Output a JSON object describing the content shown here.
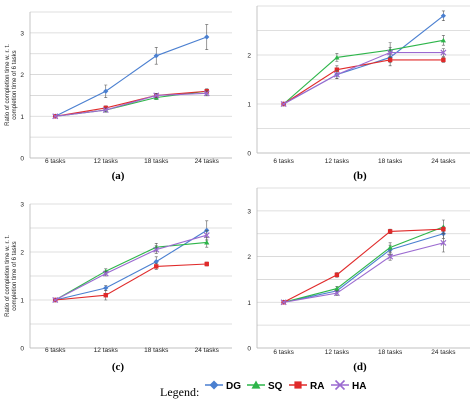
{
  "legend": {
    "title": "Legend:",
    "entries": [
      {
        "name": "DG",
        "color": "#4a7fd0",
        "marker": "diamond"
      },
      {
        "name": "SQ",
        "color": "#2db54a",
        "marker": "triangle"
      },
      {
        "name": "RA",
        "color": "#e02a2a",
        "marker": "square"
      },
      {
        "name": "HA",
        "color": "#9b6ad0",
        "marker": "x"
      }
    ]
  },
  "shared_ylabel_lines": [
    "Ratio of completion time w. r. t.",
    "completion time of 6 tasks"
  ],
  "chart_data": [
    {
      "type": "line",
      "panel": "(a)",
      "categories": [
        "6 tasks",
        "12 tasks",
        "18 tasks",
        "24 tasks"
      ],
      "ylim": [
        0,
        3.5
      ],
      "yticks": [
        0,
        1,
        2,
        3
      ],
      "grid": true,
      "series": [
        {
          "name": "DG",
          "values": [
            1.0,
            1.6,
            2.45,
            2.9
          ],
          "err": [
            0.0,
            0.15,
            0.2,
            0.3
          ]
        },
        {
          "name": "SQ",
          "values": [
            1.0,
            1.15,
            1.45,
            1.6
          ],
          "err": [
            0.0,
            0.05,
            0.05,
            0.05
          ]
        },
        {
          "name": "RA",
          "values": [
            1.0,
            1.2,
            1.5,
            1.6
          ],
          "err": [
            0.0,
            0.05,
            0.05,
            0.06
          ]
        },
        {
          "name": "HA",
          "values": [
            1.0,
            1.15,
            1.5,
            1.55
          ],
          "err": [
            0.0,
            0.05,
            0.05,
            0.06
          ]
        }
      ]
    },
    {
      "type": "line",
      "panel": "(b)",
      "categories": [
        "6 tasks",
        "12 tasks",
        "18 tasks",
        "24 tasks"
      ],
      "ylim": [
        0,
        3
      ],
      "yticks": [
        0,
        1,
        2
      ],
      "grid": true,
      "series": [
        {
          "name": "DG",
          "values": [
            1.0,
            1.6,
            1.95,
            2.8
          ],
          "err": [
            0.0,
            0.08,
            0.1,
            0.1
          ]
        },
        {
          "name": "SQ",
          "values": [
            1.0,
            1.95,
            2.1,
            2.3
          ],
          "err": [
            0.0,
            0.08,
            0.15,
            0.1
          ]
        },
        {
          "name": "RA",
          "values": [
            1.0,
            1.7,
            1.9,
            1.9
          ],
          "err": [
            0.0,
            0.08,
            0.12,
            0.05
          ]
        },
        {
          "name": "HA",
          "values": [
            1.0,
            1.6,
            2.05,
            2.05
          ],
          "err": [
            0.0,
            0.08,
            0.1,
            0.08
          ]
        }
      ]
    },
    {
      "type": "line",
      "panel": "(c)",
      "categories": [
        "6 tasks",
        "12 tasks",
        "18 tasks",
        "24 tasks"
      ],
      "ylim": [
        0,
        3
      ],
      "yticks": [
        0,
        1,
        2,
        3
      ],
      "grid": true,
      "series": [
        {
          "name": "DG",
          "values": [
            1.0,
            1.25,
            1.8,
            2.45
          ],
          "err": [
            0.0,
            0.05,
            0.1,
            0.2
          ]
        },
        {
          "name": "SQ",
          "values": [
            1.0,
            1.6,
            2.1,
            2.2
          ],
          "err": [
            0.0,
            0.05,
            0.08,
            0.1
          ]
        },
        {
          "name": "RA",
          "values": [
            1.0,
            1.1,
            1.7,
            1.75
          ],
          "err": [
            0.0,
            0.1,
            0.06,
            0.04
          ]
        },
        {
          "name": "HA",
          "values": [
            1.0,
            1.55,
            2.05,
            2.35
          ],
          "err": [
            0.0,
            0.05,
            0.08,
            0.1
          ]
        }
      ]
    },
    {
      "type": "line",
      "panel": "(d)",
      "categories": [
        "6 tasks",
        "12 tasks",
        "18 tasks",
        "24 tasks"
      ],
      "ylim": [
        0,
        3.5
      ],
      "yticks": [
        0,
        1,
        2,
        3
      ],
      "grid": true,
      "series": [
        {
          "name": "DG",
          "values": [
            1.0,
            1.25,
            2.15,
            2.5
          ],
          "err": [
            0.0,
            0.05,
            0.1,
            0.1
          ]
        },
        {
          "name": "SQ",
          "values": [
            1.0,
            1.3,
            2.2,
            2.65
          ],
          "err": [
            0.0,
            0.05,
            0.1,
            0.15
          ]
        },
        {
          "name": "RA",
          "values": [
            1.0,
            1.6,
            2.55,
            2.6
          ],
          "err": [
            0.0,
            0.05,
            0.05,
            0.05
          ]
        },
        {
          "name": "HA",
          "values": [
            1.0,
            1.2,
            2.0,
            2.3
          ],
          "err": [
            0.0,
            0.05,
            0.08,
            0.2
          ]
        }
      ]
    }
  ]
}
